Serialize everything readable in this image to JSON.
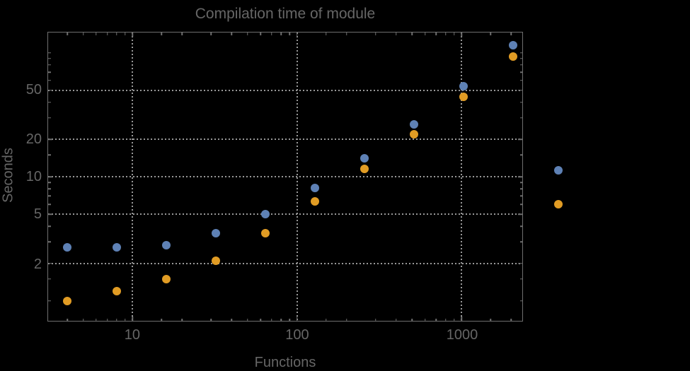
{
  "title": "Compilation time of module",
  "axes": {
    "x": {
      "label": "Functions",
      "ticks": [
        {
          "v": 10,
          "label": "10"
        },
        {
          "v": 100,
          "label": "100"
        },
        {
          "v": 1000,
          "label": "1000"
        }
      ],
      "minor": [
        4,
        5,
        6,
        7,
        8,
        9,
        15,
        20,
        30,
        40,
        50,
        60,
        70,
        80,
        90,
        150,
        200,
        300,
        400,
        500,
        600,
        700,
        800,
        900,
        1500,
        2000
      ]
    },
    "y": {
      "label": "Seconds",
      "ticks": [
        {
          "v": 2,
          "label": "2"
        },
        {
          "v": 5,
          "label": "5"
        },
        {
          "v": 10,
          "label": "10"
        },
        {
          "v": 20,
          "label": "20"
        },
        {
          "v": 50,
          "label": "50"
        }
      ],
      "minor": [
        1,
        1.5,
        3,
        4,
        6,
        7,
        8,
        9,
        15,
        30,
        40,
        60,
        70,
        80,
        90,
        100
      ]
    }
  },
  "chart_data": {
    "type": "scatter",
    "title": "Compilation time of module",
    "xlabel": "Functions",
    "ylabel": "Seconds",
    "x_scale": "log",
    "y_scale": "log",
    "xlim": [
      3.06,
      2340
    ],
    "ylim": [
      0.69,
      146
    ],
    "grid": {
      "x_values": [
        10,
        100,
        1000
      ],
      "y_values": [
        2,
        5,
        10,
        20,
        50
      ],
      "style": "dotted"
    },
    "legend_position": "right-outside",
    "x": [
      4,
      8,
      16,
      32,
      64,
      128,
      256,
      512,
      1024,
      2048
    ],
    "series": [
      {
        "name": "blue",
        "color": "#5E81B5",
        "values": [
          2.7,
          2.7,
          2.8,
          3.5,
          5.0,
          8.1,
          14.1,
          26.5,
          53.5,
          115
        ]
      },
      {
        "name": "orange",
        "color": "#E19C24",
        "values": [
          1.0,
          1.2,
          1.5,
          2.1,
          3.5,
          6.3,
          11.6,
          22,
          44.5,
          94
        ]
      }
    ]
  },
  "legend": {
    "markers": [
      {
        "name": "blue",
        "color": "#5E81B5"
      },
      {
        "name": "orange",
        "color": "#E19C24"
      }
    ]
  },
  "colors": {
    "background": "#000000",
    "frame": "#6F6F6F",
    "grid": "#989898",
    "text": "#666666",
    "series_blue": "#5E81B5",
    "series_orange": "#E19C24"
  }
}
